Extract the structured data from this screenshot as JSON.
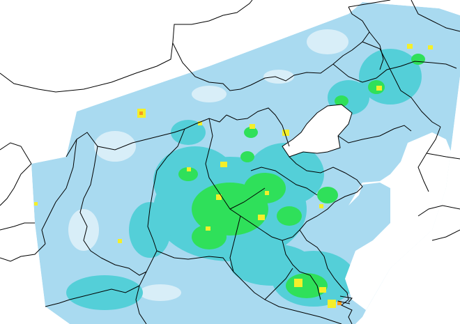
{
  "map": {
    "colors": {
      "background": "#ffffff",
      "level_low": "#a9daf0",
      "level_mid": "#54cfd8",
      "level_green": "#2fe05a",
      "level_yellow": "#f4ef2a",
      "level_orange": "#f79b1e",
      "sea": "#ffffff",
      "boundary": "#000000"
    }
  }
}
